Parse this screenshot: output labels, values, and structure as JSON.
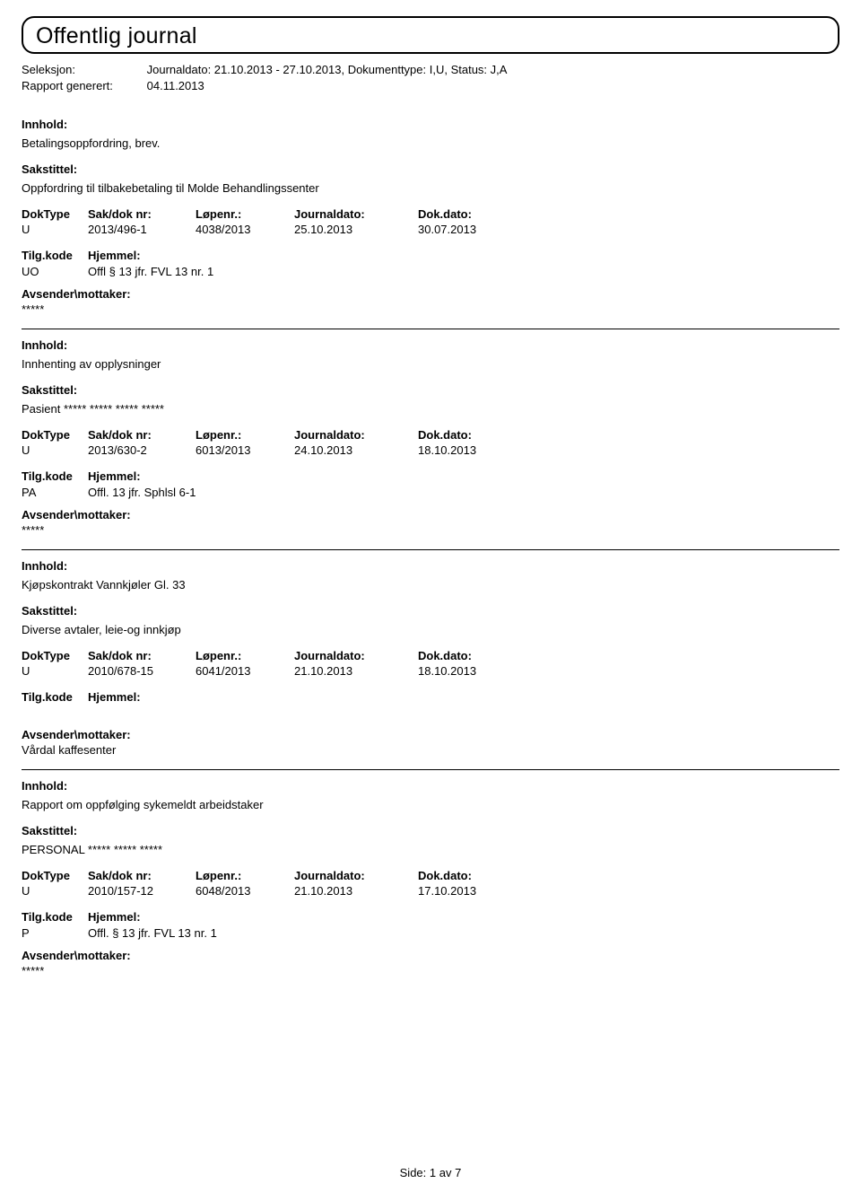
{
  "title": "Offentlig journal",
  "meta": {
    "seleksjon_label": "Seleksjon:",
    "seleksjon_value": "Journaldato: 21.10.2013 - 27.10.2013, Dokumenttype: I,U, Status: J,A",
    "rapport_label": "Rapport generert:",
    "rapport_value": "04.11.2013"
  },
  "labels": {
    "innhold": "Innhold:",
    "sakstittel": "Sakstittel:",
    "doktype": "DokType",
    "saknr": "Sak/dok nr:",
    "lopenr": "Løpenr.:",
    "journaldato": "Journaldato:",
    "dokdato": "Dok.dato:",
    "tilgkode": "Tilg.kode",
    "hjemmel": "Hjemmel:",
    "avsender": "Avsender\\mottaker:"
  },
  "entries": [
    {
      "desc": "Betalingsoppfordring, brev.",
      "sakstitle": "Oppfordring til tilbakebetaling til Molde Behandlingssenter",
      "doktype": "U",
      "saknr": "2013/496-1",
      "lopenr": "4038/2013",
      "journaldato": "25.10.2013",
      "dokdato": "30.07.2013",
      "tilgcode": "UO",
      "hjemmel": "Offl § 13 jfr. FVL 13 nr. 1",
      "mottaker": "*****"
    },
    {
      "desc": "Innhenting av opplysninger",
      "sakstitle": "Pasient ***** ***** ***** *****",
      "doktype": "U",
      "saknr": "2013/630-2",
      "lopenr": "6013/2013",
      "journaldato": "24.10.2013",
      "dokdato": "18.10.2013",
      "tilgcode": "PA",
      "hjemmel": "Offl. 13 jfr. Sphlsl  6-1",
      "mottaker": "*****"
    },
    {
      "desc": "Kjøpskontrakt Vannkjøler Gl. 33",
      "sakstitle": "Diverse avtaler, leie-og innkjøp",
      "doktype": "U",
      "saknr": "2010/678-15",
      "lopenr": "6041/2013",
      "journaldato": "21.10.2013",
      "dokdato": "18.10.2013",
      "tilgcode": "",
      "hjemmel": "",
      "mottaker": "Vårdal kaffesenter"
    },
    {
      "desc": "Rapport om oppfølging sykemeldt arbeidstaker",
      "sakstitle": "PERSONAL ***** ***** *****",
      "doktype": "U",
      "saknr": "2010/157-12",
      "lopenr": "6048/2013",
      "journaldato": "21.10.2013",
      "dokdato": "17.10.2013",
      "tilgcode": "P",
      "hjemmel": "Offl. § 13 jfr. FVL 13 nr. 1",
      "mottaker": "*****"
    }
  ],
  "footer": {
    "side_label": "Side:",
    "page": "1",
    "av": "av",
    "total": "7"
  }
}
